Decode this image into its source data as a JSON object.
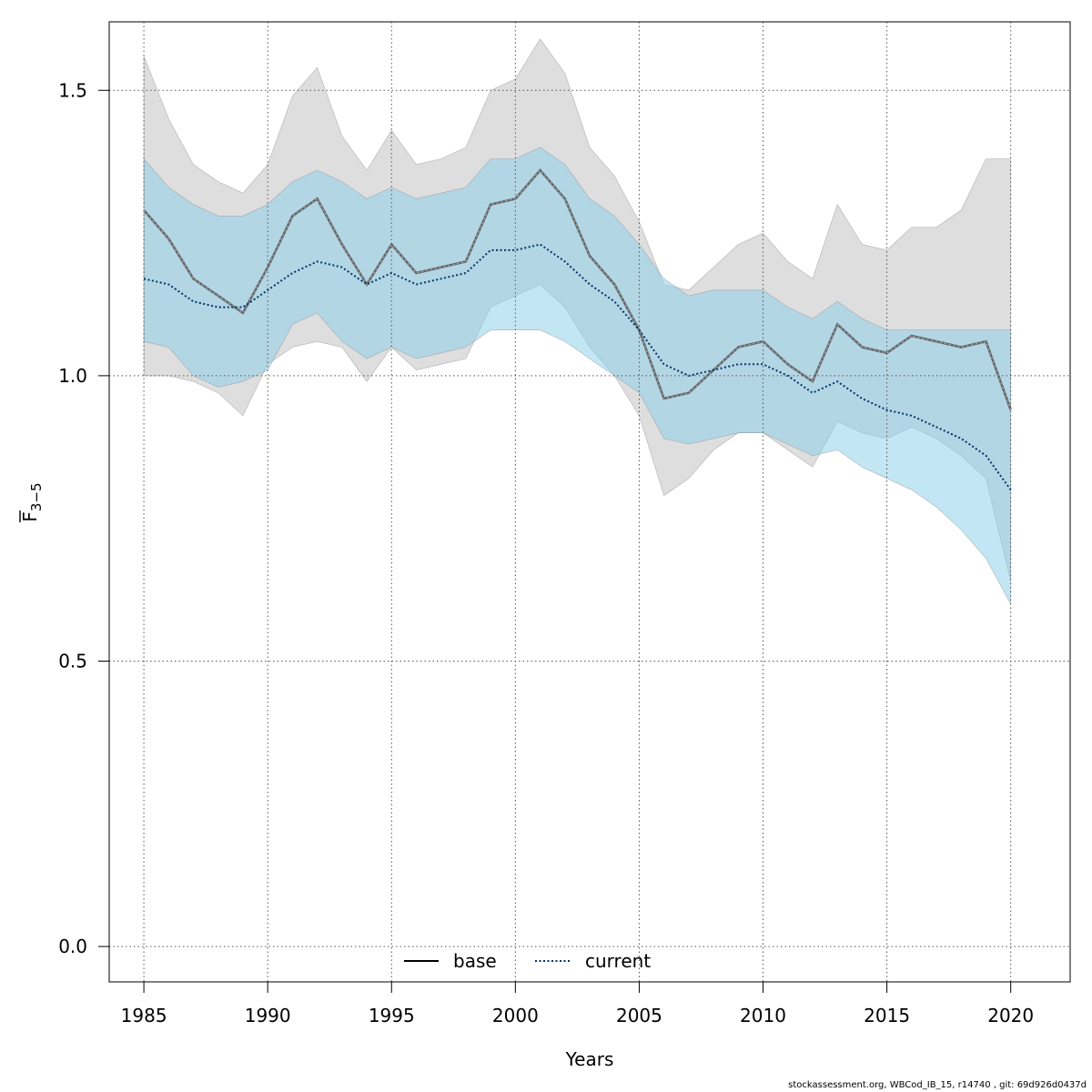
{
  "chart_data": {
    "type": "line",
    "xlabel": "Years",
    "ylabel_main": "F",
    "ylabel_sub": "3−5",
    "xlim": [
      1983.6,
      2022.4
    ],
    "ylim": [
      -0.062,
      1.62
    ],
    "xticks": [
      1985,
      1990,
      1995,
      2000,
      2005,
      2010,
      2015,
      2020
    ],
    "xtick_labels": [
      "1985",
      "1990",
      "1995",
      "2000",
      "2005",
      "2010",
      "2015",
      "2020"
    ],
    "yticks": [
      0.0,
      0.5,
      1.0,
      1.5
    ],
    "ytick_labels": [
      "0.0",
      "0.5",
      "1.0",
      "1.5"
    ],
    "grid": true,
    "legend_position": "bottom-center",
    "x": [
      1985,
      1986,
      1987,
      1988,
      1989,
      1990,
      1991,
      1992,
      1993,
      1994,
      1995,
      1996,
      1997,
      1998,
      1999,
      2000,
      2001,
      2002,
      2003,
      2004,
      2005,
      2006,
      2007,
      2008,
      2009,
      2010,
      2011,
      2012,
      2013,
      2014,
      2015,
      2016,
      2017,
      2018,
      2019,
      2020
    ],
    "series": [
      {
        "name": "base",
        "style": "solid",
        "color": "#555555",
        "fill_color": "#bebebe",
        "values": [
          1.29,
          1.24,
          1.17,
          1.14,
          1.11,
          1.19,
          1.28,
          1.31,
          1.23,
          1.16,
          1.23,
          1.18,
          1.19,
          1.2,
          1.3,
          1.31,
          1.36,
          1.31,
          1.21,
          1.16,
          1.08,
          0.96,
          0.97,
          1.01,
          1.05,
          1.06,
          1.02,
          0.99,
          1.09,
          1.05,
          1.04,
          1.07,
          1.06,
          1.05,
          1.06,
          0.94
        ],
        "lower": [
          1.0,
          1.0,
          0.99,
          0.97,
          0.93,
          1.02,
          1.05,
          1.06,
          1.05,
          0.99,
          1.05,
          1.01,
          1.02,
          1.03,
          1.12,
          1.14,
          1.16,
          1.12,
          1.05,
          1.0,
          0.93,
          0.79,
          0.82,
          0.87,
          0.9,
          0.9,
          0.87,
          0.84,
          0.92,
          0.9,
          0.89,
          0.91,
          0.89,
          0.86,
          0.82,
          0.64
        ],
        "upper": [
          1.56,
          1.45,
          1.37,
          1.34,
          1.32,
          1.37,
          1.49,
          1.54,
          1.42,
          1.36,
          1.43,
          1.37,
          1.38,
          1.4,
          1.5,
          1.52,
          1.59,
          1.53,
          1.4,
          1.35,
          1.27,
          1.16,
          1.15,
          1.19,
          1.23,
          1.25,
          1.2,
          1.17,
          1.3,
          1.23,
          1.22,
          1.26,
          1.26,
          1.29,
          1.38,
          1.38
        ]
      },
      {
        "name": "current",
        "style": "dotted",
        "color": "#003566",
        "fill_color": "#87ceeb",
        "values": [
          1.17,
          1.16,
          1.13,
          1.12,
          1.12,
          1.15,
          1.18,
          1.2,
          1.19,
          1.16,
          1.18,
          1.16,
          1.17,
          1.18,
          1.22,
          1.22,
          1.23,
          1.2,
          1.16,
          1.13,
          1.08,
          1.02,
          1.0,
          1.01,
          1.02,
          1.02,
          1.0,
          0.97,
          0.99,
          0.96,
          0.94,
          0.93,
          0.91,
          0.89,
          0.86,
          0.8
        ],
        "lower": [
          1.06,
          1.05,
          1.0,
          0.98,
          0.99,
          1.01,
          1.09,
          1.11,
          1.06,
          1.03,
          1.05,
          1.03,
          1.04,
          1.05,
          1.08,
          1.08,
          1.08,
          1.06,
          1.03,
          1.0,
          0.97,
          0.89,
          0.88,
          0.89,
          0.9,
          0.9,
          0.88,
          0.86,
          0.87,
          0.84,
          0.82,
          0.8,
          0.77,
          0.73,
          0.68,
          0.6
        ],
        "upper": [
          1.38,
          1.33,
          1.3,
          1.28,
          1.28,
          1.3,
          1.34,
          1.36,
          1.34,
          1.31,
          1.33,
          1.31,
          1.32,
          1.33,
          1.38,
          1.38,
          1.4,
          1.37,
          1.31,
          1.28,
          1.23,
          1.17,
          1.14,
          1.15,
          1.15,
          1.15,
          1.12,
          1.1,
          1.13,
          1.1,
          1.08,
          1.08,
          1.08,
          1.08,
          1.08,
          1.08
        ]
      }
    ],
    "legend": [
      "base",
      "current"
    ]
  },
  "footer_text": "stockassessment.org, WBCod_IB_15, r14740 , git: 69d926d0437d"
}
